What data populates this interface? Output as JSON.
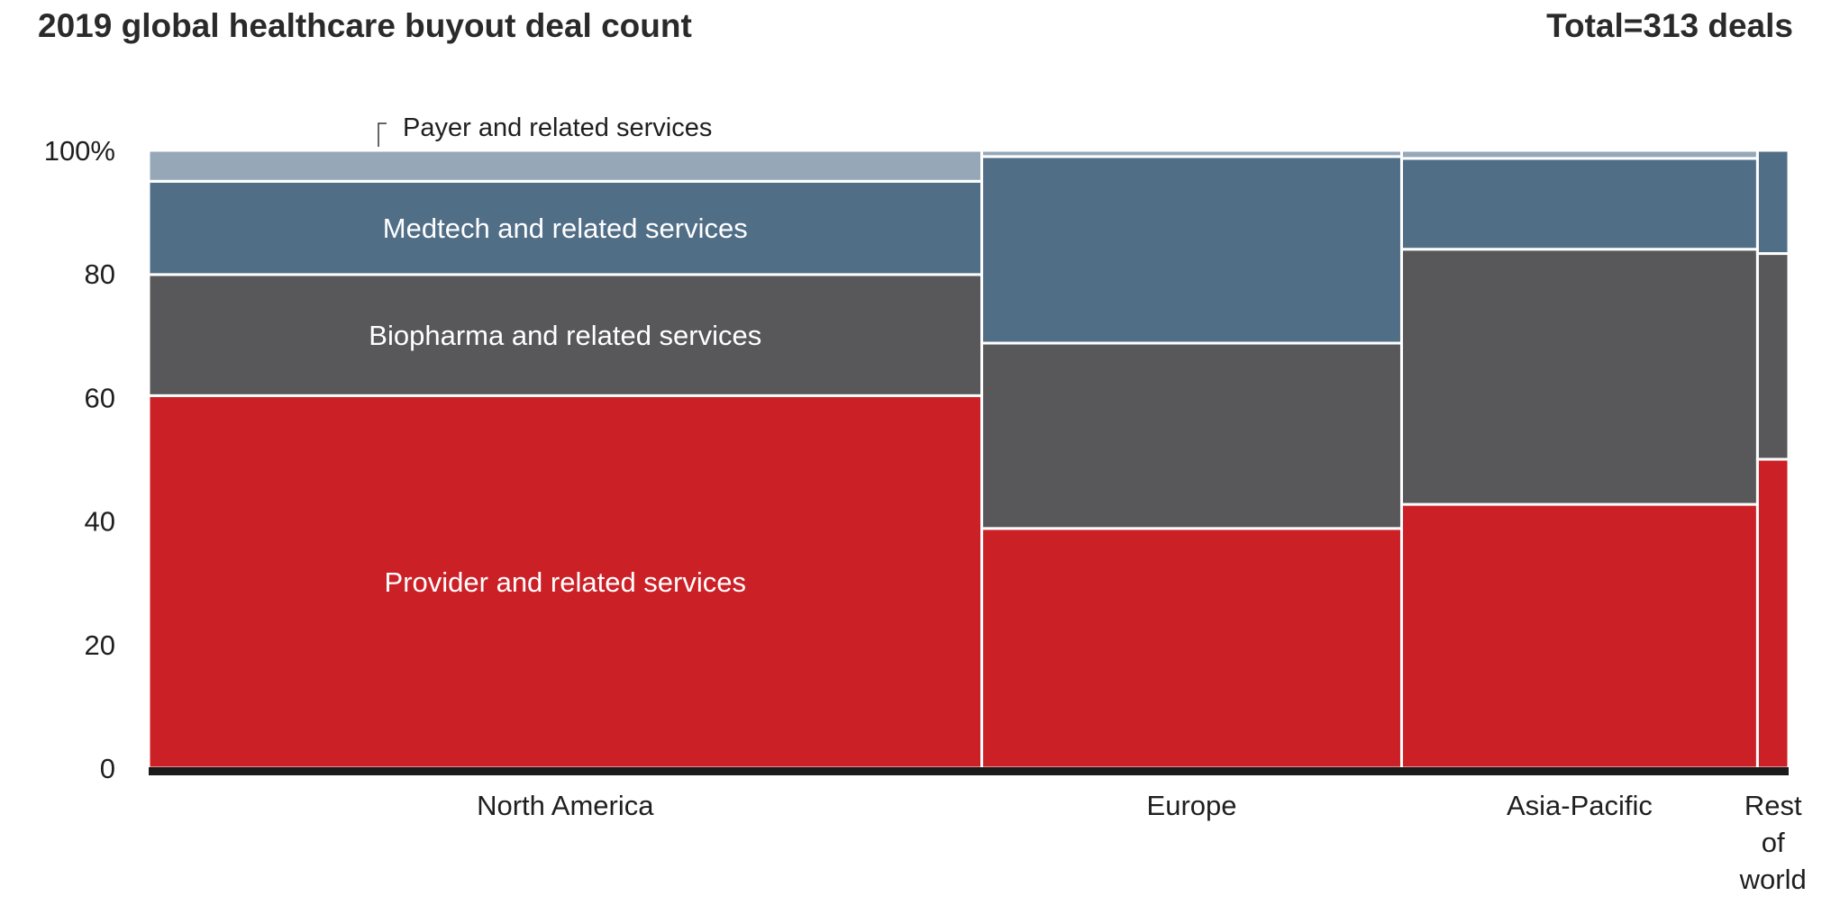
{
  "header": {
    "title": "2019 global healthcare buyout deal count",
    "total": "Total=313 deals"
  },
  "chart_data": {
    "type": "bar",
    "subtype": "mekko (variable-width 100% stacked bar)",
    "title": "2019 global healthcare buyout deal count",
    "subtitle": "Total=313 deals",
    "y_ticks": [
      "0",
      "20",
      "40",
      "60",
      "80",
      "100%"
    ],
    "ylim": [
      0,
      100
    ],
    "grid": false,
    "legend": "inline segment labels in North America column",
    "column_widths_pct": [
      50.8,
      25.6,
      21.7,
      1.9
    ],
    "categories": [
      "North America",
      "Europe",
      "Asia-Pacific",
      "Rest of world"
    ],
    "category_label_lines": [
      [
        "North America"
      ],
      [
        "Europe"
      ],
      [
        "Asia-Pacific"
      ],
      [
        "Rest",
        "of",
        "world"
      ]
    ],
    "series": [
      {
        "name": "Provider and related services",
        "color": "#cc2027",
        "values": [
          60.3,
          38.8,
          42.7,
          50.0
        ]
      },
      {
        "name": "Biopharma and related services",
        "color": "#58585a",
        "values": [
          19.6,
          30.0,
          41.3,
          33.3
        ]
      },
      {
        "name": "Medtech and related services",
        "color": "#516e87",
        "values": [
          15.1,
          30.2,
          14.7,
          16.7
        ]
      },
      {
        "name": "Payer and related services",
        "color": "#96a8b8",
        "values": [
          5.0,
          1.0,
          1.3,
          0.0
        ]
      }
    ],
    "segment_labels": {
      "Provider and related services": "Provider and related services",
      "Biopharma and related services": "Biopharma and related services",
      "Medtech and related services": "Medtech and related services",
      "Payer and related services": "Payer and related services"
    },
    "colors": {
      "separator": "#ffffff",
      "baseline": "#1a1a1a",
      "text": "#1f1f1f",
      "inbar_text": "#ffffff"
    }
  }
}
